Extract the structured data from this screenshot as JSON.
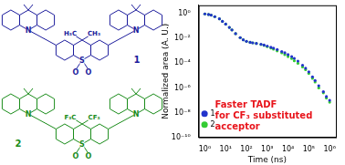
{
  "chart_data": {
    "type": "scatter",
    "y_label": "Normalized area (A. U.)",
    "x_label": "Time (ns)",
    "log": true,
    "grid": false,
    "legend": "upper right",
    "annotation": [
      "Faster TADF",
      "for CF₃ substituted",
      "acceptor"
    ],
    "xlim": [
      0.5,
      2000000
    ],
    "xticks": [
      {
        "value": 1,
        "label": "10⁰"
      },
      {
        "value": 10,
        "label": "10¹"
      },
      {
        "value": 100,
        "label": "10²"
      },
      {
        "value": 1000,
        "label": "10³"
      },
      {
        "value": 10000,
        "label": "10⁴"
      },
      {
        "value": 100000,
        "label": "10⁵"
      },
      {
        "value": 1000000,
        "label": "10⁶"
      }
    ],
    "ylim": [
      1e-10,
      5
    ],
    "yticks": [
      {
        "value": 1e-10,
        "label": "10⁻¹⁰"
      },
      {
        "value": 1e-08,
        "label": "10⁻⁸"
      },
      {
        "value": 1e-06,
        "label": "10⁻⁶"
      },
      {
        "value": 0.0001,
        "label": "10⁻⁴"
      },
      {
        "value": 0.01,
        "label": "10⁻²"
      },
      {
        "value": 1,
        "label": "10⁰"
      }
    ],
    "x": [
      1,
      1.5,
      2,
      3,
      5,
      7,
      10,
      15,
      20,
      30,
      50,
      70,
      100,
      150,
      200,
      300,
      500,
      700,
      1000,
      1500,
      2000,
      3000,
      5000,
      7000,
      10000,
      15000,
      20000,
      30000,
      50000,
      70000,
      100000,
      150000,
      200000,
      300000,
      500000,
      700000,
      1000000
    ],
    "series": [
      {
        "name": "1",
        "color": "#2233cc",
        "marker": "circle",
        "values": [
          1,
          0.9,
          0.8,
          0.6,
          0.4,
          0.25,
          0.15,
          0.08,
          0.05,
          0.025,
          0.012,
          0.008,
          0.006,
          0.005,
          0.0045,
          0.004,
          0.0035,
          0.003,
          0.0025,
          0.002,
          0.0017,
          0.0013,
          0.0009,
          0.0007,
          0.0005,
          0.00035,
          0.00025,
          0.00015,
          7e-05,
          4e-05,
          2e-05,
          8e-06,
          4e-06,
          1.5e-06,
          5e-07,
          2e-07,
          1e-07
        ]
      },
      {
        "name": "2",
        "color": "#33cc33",
        "marker": "circle",
        "values": [
          1,
          0.9,
          0.8,
          0.6,
          0.4,
          0.25,
          0.15,
          0.08,
          0.05,
          0.025,
          0.012,
          0.008,
          0.006,
          0.005,
          0.0045,
          0.004,
          0.0033,
          0.0028,
          0.0022,
          0.0017,
          0.0014,
          0.001,
          0.0007,
          0.0005,
          0.00035,
          0.00024,
          0.00016,
          0.0001,
          5e-05,
          3e-05,
          1.5e-05,
          6e-06,
          3e-06,
          1e-06,
          4e-07,
          1.5e-07,
          7e-08
        ]
      }
    ]
  },
  "structures": [
    {
      "label": "1",
      "color": "#1c1c9c",
      "substituents": [
        "H₃C",
        "CH₃"
      ],
      "atoms": [
        "N",
        "N",
        "S",
        "O",
        "O"
      ]
    },
    {
      "label": "2",
      "color": "#1a8c1a",
      "substituents": [
        "F₃C",
        "CF₃"
      ],
      "atoms": [
        "N",
        "N",
        "S",
        "O",
        "O"
      ]
    }
  ]
}
